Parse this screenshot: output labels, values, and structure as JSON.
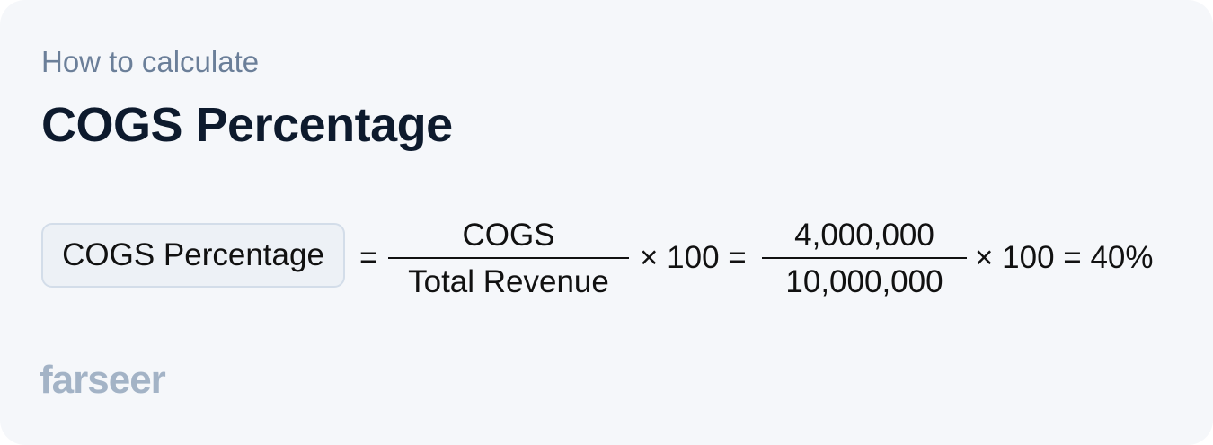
{
  "header": {
    "subtitle": "How to calculate",
    "title": "COGS Percentage"
  },
  "formula": {
    "term": "COGS Percentage",
    "equals": "=",
    "fraction1": {
      "numerator": "COGS",
      "denominator": "Total Revenue"
    },
    "mult1": "× 100 =",
    "fraction2": {
      "numerator": "4,000,000",
      "denominator": "10,000,000"
    },
    "result": "× 100 = 40%"
  },
  "brand": {
    "logo": "farseer"
  }
}
